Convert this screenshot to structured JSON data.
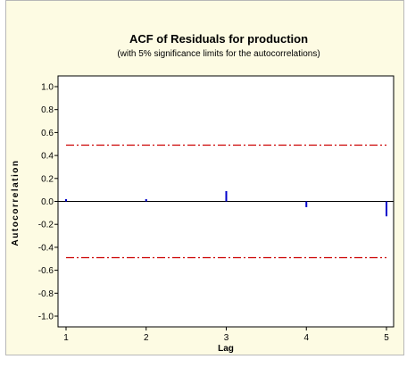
{
  "chart_data": {
    "type": "bar",
    "title": "ACF of Residuals for production",
    "subtitle": "(with 5% significance limits for the autocorrelations)",
    "xlabel": "Lag",
    "ylabel": "Autocorrelation",
    "x": [
      1,
      2,
      3,
      4,
      5
    ],
    "values": [
      0.02,
      0.02,
      0.09,
      -0.05,
      -0.13
    ],
    "xlim": [
      1,
      5
    ],
    "ylim": [
      -1.0,
      1.0
    ],
    "y_ticks": [
      "1.0",
      "0.8",
      "0.6",
      "0.4",
      "0.2",
      "0.0",
      "-0.2",
      "-0.4",
      "-0.6",
      "-0.8",
      "-1.0"
    ],
    "x_ticks": [
      "1",
      "2",
      "3",
      "4",
      "5"
    ],
    "significance_limits": [
      0.49,
      -0.49
    ],
    "grid": false,
    "colors": {
      "bars": "#0000cc",
      "limits": "#cc0000",
      "zero_line": "#000000",
      "background": "#fdfbe3"
    }
  }
}
